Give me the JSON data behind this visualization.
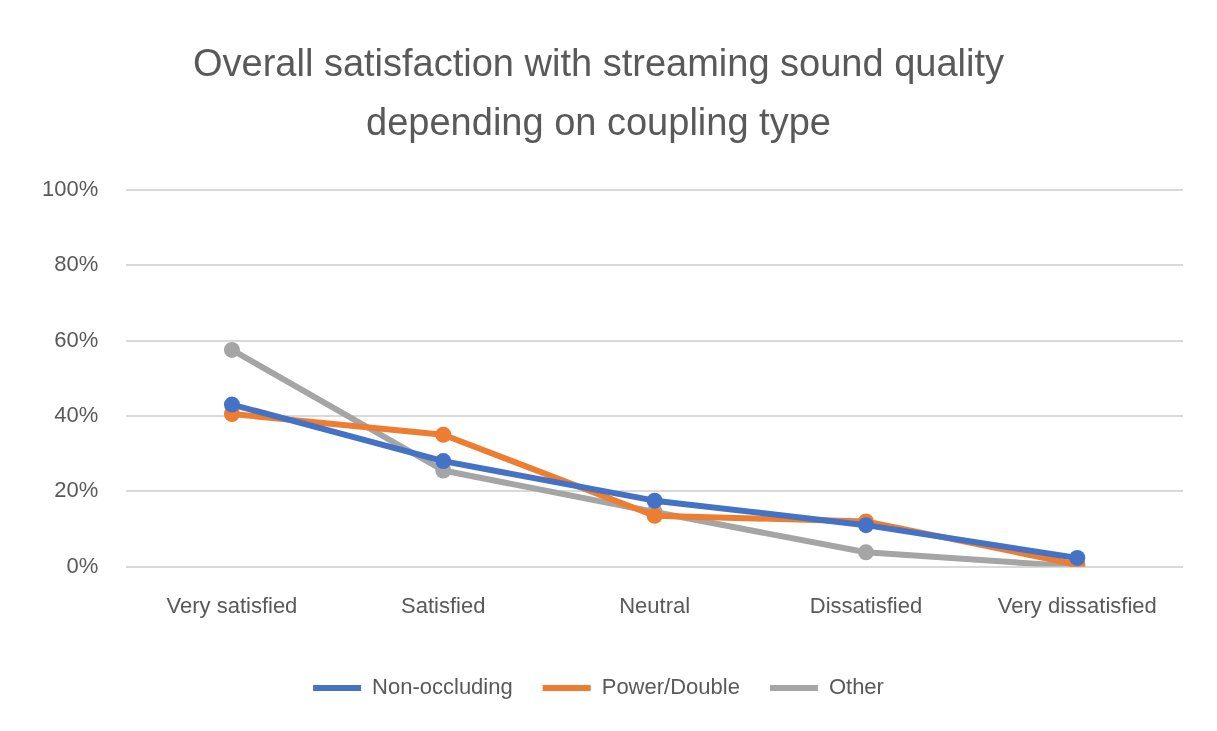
{
  "chart_data": {
    "type": "line",
    "title": "Overall satisfaction with streaming sound quality depending on coupling type",
    "categories": [
      "Very satisfied",
      "Satisfied",
      "Neutral",
      "Dissatisfied",
      "Very dissatisfied"
    ],
    "series": [
      {
        "name": "Non-occluding",
        "color": "#4472c4",
        "values": [
          43,
          28,
          17.5,
          11,
          2.3
        ]
      },
      {
        "name": "Power/Double",
        "color": "#ed7d31",
        "values": [
          40.5,
          35,
          13.5,
          12,
          0.5
        ]
      },
      {
        "name": "Other",
        "color": "#a5a5a5",
        "values": [
          57.5,
          25.5,
          14.5,
          3.8,
          0
        ]
      }
    ],
    "ylim": [
      0,
      100
    ],
    "yticks": [
      {
        "value": 0,
        "label": "0%"
      },
      {
        "value": 20,
        "label": "20%"
      },
      {
        "value": 40,
        "label": "40%"
      },
      {
        "value": 60,
        "label": "60%"
      },
      {
        "value": 80,
        "label": "80%"
      },
      {
        "value": 100,
        "label": "100%"
      }
    ],
    "grid": "y",
    "legend": "bottom",
    "marker": "circle",
    "line_style": "solid"
  }
}
